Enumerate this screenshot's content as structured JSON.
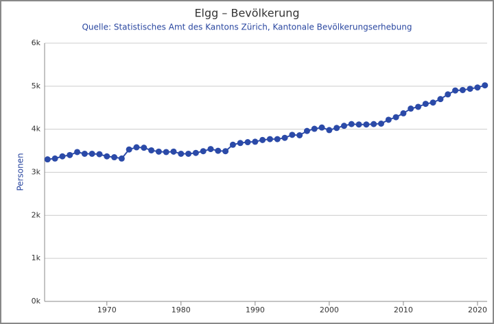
{
  "chart_data": {
    "type": "line",
    "title": "Elgg – Bevölkerung",
    "subtitle": "Quelle: Statistisches Amt des Kantons Zürich, Kantonale Bevölkerungserhebung",
    "y_label": "Personen",
    "x": [
      1962,
      1963,
      1964,
      1965,
      1966,
      1967,
      1968,
      1969,
      1970,
      1971,
      1972,
      1973,
      1974,
      1975,
      1976,
      1977,
      1978,
      1979,
      1980,
      1981,
      1982,
      1983,
      1984,
      1985,
      1986,
      1987,
      1988,
      1989,
      1990,
      1991,
      1992,
      1993,
      1994,
      1995,
      1996,
      1997,
      1998,
      1999,
      2000,
      2001,
      2002,
      2003,
      2004,
      2005,
      2006,
      2007,
      2008,
      2009,
      2010,
      2011,
      2012,
      2013,
      2014,
      2015,
      2016,
      2017,
      2018,
      2019,
      2020,
      2021
    ],
    "series": [
      {
        "name": "Personen",
        "color": "#2b4aa8",
        "values": [
          3300,
          3320,
          3370,
          3400,
          3470,
          3430,
          3430,
          3420,
          3370,
          3350,
          3320,
          3530,
          3580,
          3570,
          3510,
          3480,
          3470,
          3480,
          3430,
          3430,
          3450,
          3490,
          3540,
          3500,
          3490,
          3640,
          3680,
          3700,
          3710,
          3750,
          3770,
          3770,
          3800,
          3870,
          3860,
          3960,
          4010,
          4040,
          3980,
          4030,
          4080,
          4120,
          4110,
          4110,
          4120,
          4130,
          4220,
          4280,
          4370,
          4480,
          4520,
          4590,
          4620,
          4700,
          4810,
          4900,
          4910,
          4940,
          4970,
          5020
        ]
      }
    ],
    "xlim": [
      1961.6,
      2021.3
    ],
    "xticks": [
      1970,
      1980,
      1990,
      2000,
      2010,
      2020
    ],
    "ylim": [
      0,
      6000
    ],
    "yticks": [
      {
        "value": 0,
        "label": "0k"
      },
      {
        "value": 1000,
        "label": "1k"
      },
      {
        "value": 2000,
        "label": "2k"
      },
      {
        "value": 3000,
        "label": "3k"
      },
      {
        "value": 4000,
        "label": "4k"
      },
      {
        "value": 5000,
        "label": "5k"
      },
      {
        "value": 6000,
        "label": "6k"
      }
    ],
    "grid": true
  }
}
